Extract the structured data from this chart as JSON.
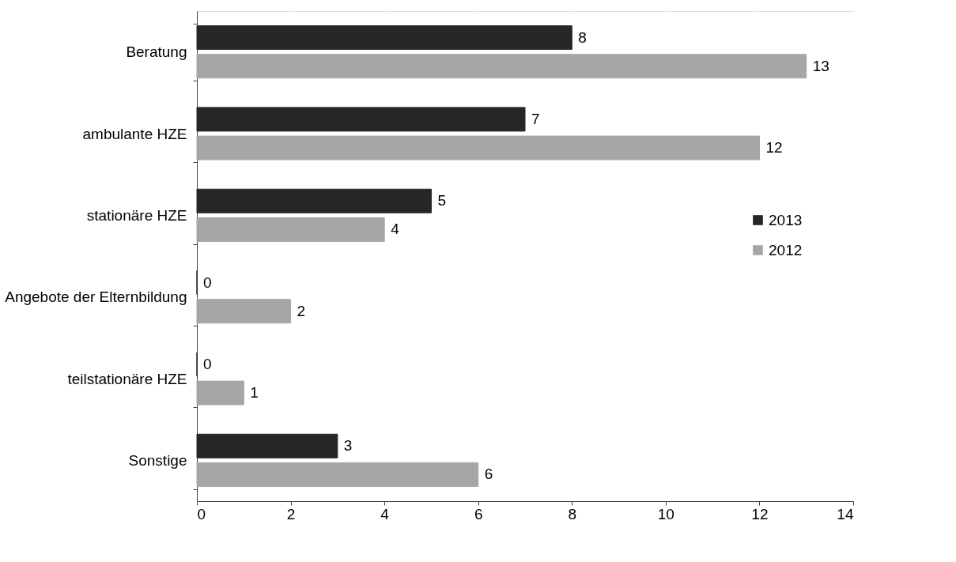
{
  "chart_data": {
    "type": "bar",
    "orientation": "horizontal",
    "categories": [
      "Beratung",
      "ambulante HZE",
      "stationäre HZE",
      "Angebote der Elternbildung",
      "teilstationäre HZE",
      "Sonstige"
    ],
    "series": [
      {
        "name": "2013",
        "color": "#262626",
        "values": [
          8,
          7,
          5,
          0,
          0,
          3
        ]
      },
      {
        "name": "2012",
        "color": "#a6a6a6",
        "values": [
          13,
          12,
          4,
          2,
          1,
          6
        ]
      }
    ],
    "xlim": [
      0,
      14
    ],
    "xticks": [
      0,
      2,
      4,
      6,
      8,
      10,
      12,
      14
    ],
    "grid": "x",
    "legend": "right",
    "data_labels": true
  }
}
